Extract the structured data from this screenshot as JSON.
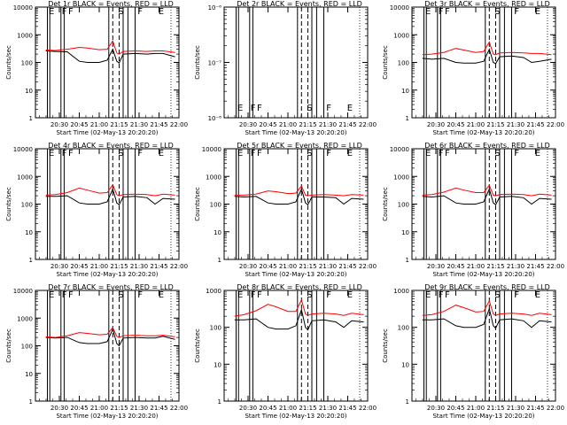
{
  "figure": {
    "colors": {
      "events": "#000000",
      "lld": "#ff0000",
      "axes": "#000000",
      "background": "#ffffff"
    },
    "xlabel": "Start Time (02-May-13 20:20:20)"
  },
  "chart_data": [
    {
      "type": "line",
      "title": "Det 1r BLACK = Events, RED = LLD",
      "ylabel": "Counts/sec",
      "yscale": "log",
      "ylim": [
        1,
        10000
      ],
      "yticks": [
        "1",
        "10",
        "100",
        "1000",
        "10000"
      ],
      "xticks": [
        "20:30",
        "20:45",
        "21:00",
        "21:15",
        "21:30",
        "21:45",
        "22:00"
      ],
      "flags": [
        "E",
        "F",
        "F",
        "S",
        "F",
        "E"
      ],
      "series": [
        {
          "key": "events",
          "x": [
            20.33,
            20.45,
            20.6,
            20.75,
            20.85,
            21.0,
            21.1,
            21.17,
            21.22,
            21.25,
            21.3,
            21.45,
            21.6,
            21.7,
            21.8,
            21.95
          ],
          "values": [
            260,
            250,
            240,
            110,
            100,
            100,
            120,
            300,
            110,
            95,
            200,
            210,
            200,
            210,
            210,
            160
          ]
        },
        {
          "key": "lld",
          "x": [
            20.33,
            20.45,
            20.6,
            20.75,
            20.85,
            21.0,
            21.1,
            21.17,
            21.22,
            21.25,
            21.3,
            21.45,
            21.6,
            21.7,
            21.8,
            21.95
          ],
          "values": [
            280,
            270,
            300,
            350,
            330,
            290,
            300,
            600,
            220,
            200,
            250,
            260,
            250,
            260,
            260,
            230
          ]
        }
      ]
    },
    {
      "type": "line",
      "title": "Det 2r BLACK = Events, RED = LLD",
      "ylabel": "Counts/sec",
      "yscale": "log",
      "ylim": [
        1e-08,
        1e-06
      ],
      "yticks": [
        "10⁻⁸",
        "10⁻⁷",
        "10⁻⁶"
      ],
      "xticks": [
        "20:30",
        "20:45",
        "21:00",
        "21:15",
        "21:30",
        "21:45",
        "22:00"
      ],
      "flags": [
        "E",
        "F",
        "F",
        "S",
        "F",
        "E"
      ],
      "series": []
    },
    {
      "type": "line",
      "title": "Det 3r BLACK = Events, RED = LLD",
      "ylabel": "Counts/sec",
      "yscale": "log",
      "ylim": [
        1,
        10000
      ],
      "yticks": [
        "1",
        "10",
        "100",
        "1000",
        "10000"
      ],
      "xticks": [
        "20:30",
        "20:45",
        "21:00",
        "21:15",
        "21:30",
        "21:45",
        "22:00"
      ],
      "flags": [
        "E",
        "F",
        "F",
        "S",
        "F",
        "E"
      ],
      "series": [
        {
          "key": "events",
          "x": [
            20.33,
            20.45,
            20.6,
            20.75,
            20.85,
            21.0,
            21.1,
            21.17,
            21.22,
            21.25,
            21.3,
            21.45,
            21.6,
            21.7,
            21.8,
            21.95
          ],
          "values": [
            140,
            130,
            140,
            100,
            95,
            95,
            110,
            300,
            100,
            90,
            160,
            170,
            150,
            100,
            110,
            130
          ]
        },
        {
          "key": "lld",
          "x": [
            20.33,
            20.45,
            20.6,
            20.75,
            20.85,
            21.0,
            21.1,
            21.17,
            21.22,
            21.25,
            21.3,
            21.45,
            21.6,
            21.7,
            21.8,
            21.95
          ],
          "values": [
            190,
            200,
            230,
            320,
            280,
            230,
            250,
            550,
            200,
            190,
            220,
            230,
            220,
            210,
            210,
            190
          ]
        }
      ]
    },
    {
      "type": "line",
      "title": "Det 4r BLACK = Events, RED = LLD",
      "ylabel": "Counts/sec",
      "yscale": "log",
      "ylim": [
        1,
        10000
      ],
      "yticks": [
        "1",
        "10",
        "100",
        "1000",
        "10000"
      ],
      "xticks": [
        "20:30",
        "20:45",
        "21:00",
        "21:15",
        "21:30",
        "21:45",
        "22:00"
      ],
      "flags": [
        "E",
        "F",
        "F",
        "S",
        "F",
        "E"
      ],
      "series": [
        {
          "key": "events",
          "x": [
            20.33,
            20.45,
            20.6,
            20.75,
            20.85,
            21.0,
            21.1,
            21.17,
            21.22,
            21.25,
            21.3,
            21.45,
            21.6,
            21.7,
            21.8,
            21.95
          ],
          "values": [
            190,
            190,
            200,
            110,
            100,
            100,
            120,
            350,
            110,
            95,
            180,
            190,
            170,
            100,
            160,
            150
          ]
        },
        {
          "key": "lld",
          "x": [
            20.33,
            20.45,
            20.6,
            20.75,
            20.85,
            21.0,
            21.1,
            21.17,
            21.22,
            21.25,
            21.3,
            21.45,
            21.6,
            21.7,
            21.8,
            21.95
          ],
          "values": [
            210,
            220,
            260,
            380,
            320,
            250,
            260,
            500,
            220,
            200,
            220,
            230,
            220,
            200,
            230,
            210
          ]
        }
      ]
    },
    {
      "type": "line",
      "title": "Det 5r BLACK = Events, RED = LLD",
      "ylabel": "Counts/sec",
      "yscale": "log",
      "ylim": [
        1,
        10000
      ],
      "yticks": [
        "1",
        "10",
        "100",
        "1000",
        "10000"
      ],
      "xticks": [
        "20:30",
        "20:45",
        "21:00",
        "21:15",
        "21:30",
        "21:45",
        "22:00"
      ],
      "flags": [
        "E",
        "F",
        "F",
        "S",
        "F",
        "E"
      ],
      "series": [
        {
          "key": "events",
          "x": [
            20.33,
            20.45,
            20.6,
            20.75,
            20.85,
            21.0,
            21.1,
            21.17,
            21.22,
            21.25,
            21.3,
            21.45,
            21.6,
            21.7,
            21.8,
            21.95
          ],
          "values": [
            190,
            180,
            190,
            110,
            100,
            100,
            120,
            350,
            110,
            95,
            180,
            180,
            170,
            100,
            160,
            150
          ]
        },
        {
          "key": "lld",
          "x": [
            20.33,
            20.45,
            20.6,
            20.75,
            20.85,
            21.0,
            21.1,
            21.17,
            21.22,
            21.25,
            21.3,
            21.45,
            21.6,
            21.7,
            21.8,
            21.95
          ],
          "values": [
            210,
            210,
            230,
            300,
            280,
            240,
            250,
            450,
            210,
            200,
            210,
            220,
            210,
            200,
            220,
            210
          ]
        }
      ]
    },
    {
      "type": "line",
      "title": "Det 6r BLACK = Events, RED = LLD",
      "ylabel": "Counts/sec",
      "yscale": "log",
      "ylim": [
        1,
        10000
      ],
      "yticks": [
        "1",
        "10",
        "100",
        "1000",
        "10000"
      ],
      "xticks": [
        "20:30",
        "20:45",
        "21:00",
        "21:15",
        "21:30",
        "21:45",
        "22:00"
      ],
      "flags": [
        "E",
        "F",
        "F",
        "S",
        "F",
        "E"
      ],
      "series": [
        {
          "key": "events",
          "x": [
            20.33,
            20.45,
            20.6,
            20.75,
            20.85,
            21.0,
            21.1,
            21.17,
            21.22,
            21.25,
            21.3,
            21.45,
            21.6,
            21.7,
            21.8,
            21.95
          ],
          "values": [
            190,
            180,
            200,
            110,
            100,
            100,
            120,
            350,
            110,
            95,
            180,
            190,
            170,
            100,
            160,
            150
          ]
        },
        {
          "key": "lld",
          "x": [
            20.33,
            20.45,
            20.6,
            20.75,
            20.85,
            21.0,
            21.1,
            21.17,
            21.22,
            21.25,
            21.3,
            21.45,
            21.6,
            21.7,
            21.8,
            21.95
          ],
          "values": [
            210,
            220,
            270,
            380,
            320,
            260,
            260,
            480,
            210,
            200,
            220,
            230,
            220,
            200,
            230,
            210
          ]
        }
      ]
    },
    {
      "type": "line",
      "title": "Det 7r BLACK = Events, RED = LLD",
      "ylabel": "Counts/sec",
      "yscale": "log",
      "ylim": [
        1,
        10000
      ],
      "yticks": [
        "1",
        "10",
        "100",
        "1000",
        "10000"
      ],
      "xticks": [
        "20:30",
        "20:45",
        "21:00",
        "21:15",
        "21:30",
        "21:45",
        "22:00"
      ],
      "flags": [
        "E",
        "F",
        "F",
        "S",
        "F",
        "E"
      ],
      "series": [
        {
          "key": "events",
          "x": [
            20.33,
            20.45,
            20.6,
            20.75,
            20.85,
            21.0,
            21.1,
            21.17,
            21.22,
            21.25,
            21.3,
            21.45,
            21.6,
            21.7,
            21.8,
            21.95
          ],
          "values": [
            200,
            190,
            200,
            130,
            120,
            120,
            140,
            400,
            120,
            100,
            190,
            200,
            190,
            190,
            220,
            170
          ]
        },
        {
          "key": "lld",
          "x": [
            20.33,
            20.45,
            20.6,
            20.75,
            20.85,
            21.0,
            21.1,
            21.17,
            21.22,
            21.25,
            21.3,
            21.45,
            21.6,
            21.7,
            21.8,
            21.95
          ],
          "values": [
            210,
            200,
            230,
            300,
            280,
            250,
            260,
            450,
            220,
            200,
            230,
            240,
            230,
            230,
            240,
            210
          ]
        }
      ]
    },
    {
      "type": "line",
      "title": "Det 8r BLACK = Events, RED = LLD",
      "ylabel": "Counts/sec",
      "yscale": "log",
      "ylim": [
        1,
        1000
      ],
      "yticks": [
        "1",
        "10",
        "100",
        "1000"
      ],
      "xticks": [
        "20:30",
        "20:45",
        "21:00",
        "21:15",
        "21:30",
        "21:45",
        "22:00"
      ],
      "flags": [
        "E",
        "F",
        "F",
        "S",
        "F",
        "E"
      ],
      "series": [
        {
          "key": "events",
          "x": [
            20.33,
            20.45,
            20.6,
            20.75,
            20.85,
            21.0,
            21.1,
            21.17,
            21.22,
            21.25,
            21.3,
            21.45,
            21.6,
            21.7,
            21.8,
            21.95
          ],
          "values": [
            160,
            160,
            170,
            100,
            90,
            90,
            110,
            300,
            100,
            85,
            150,
            160,
            140,
            100,
            150,
            140
          ]
        },
        {
          "key": "lld",
          "x": [
            20.33,
            20.45,
            20.6,
            20.75,
            20.85,
            21.0,
            21.1,
            21.17,
            21.22,
            21.25,
            21.3,
            21.45,
            21.6,
            21.7,
            21.8,
            21.95
          ],
          "values": [
            200,
            220,
            280,
            420,
            360,
            270,
            270,
            550,
            230,
            210,
            230,
            240,
            230,
            210,
            240,
            220
          ]
        }
      ]
    },
    {
      "type": "line",
      "title": "Det 9r BLACK = Events, RED = LLD",
      "ylabel": "Counts/sec",
      "yscale": "log",
      "ylim": [
        1,
        1000
      ],
      "yticks": [
        "1",
        "10",
        "100",
        "1000"
      ],
      "xticks": [
        "20:30",
        "20:45",
        "21:00",
        "21:15",
        "21:30",
        "21:45",
        "22:00"
      ],
      "flags": [
        "E",
        "F",
        "F",
        "S",
        "F",
        "E"
      ],
      "series": [
        {
          "key": "events",
          "x": [
            20.33,
            20.45,
            20.6,
            20.75,
            20.85,
            21.0,
            21.1,
            21.17,
            21.22,
            21.25,
            21.3,
            21.45,
            21.6,
            21.7,
            21.8,
            21.95
          ],
          "values": [
            160,
            160,
            170,
            110,
            100,
            100,
            120,
            320,
            110,
            95,
            160,
            170,
            150,
            100,
            150,
            140
          ]
        },
        {
          "key": "lld",
          "x": [
            20.33,
            20.45,
            20.6,
            20.75,
            20.85,
            21.0,
            21.1,
            21.17,
            21.22,
            21.25,
            21.3,
            21.45,
            21.6,
            21.7,
            21.8,
            21.95
          ],
          "values": [
            210,
            220,
            270,
            400,
            340,
            260,
            270,
            520,
            230,
            210,
            230,
            240,
            230,
            210,
            240,
            220
          ]
        }
      ]
    }
  ]
}
